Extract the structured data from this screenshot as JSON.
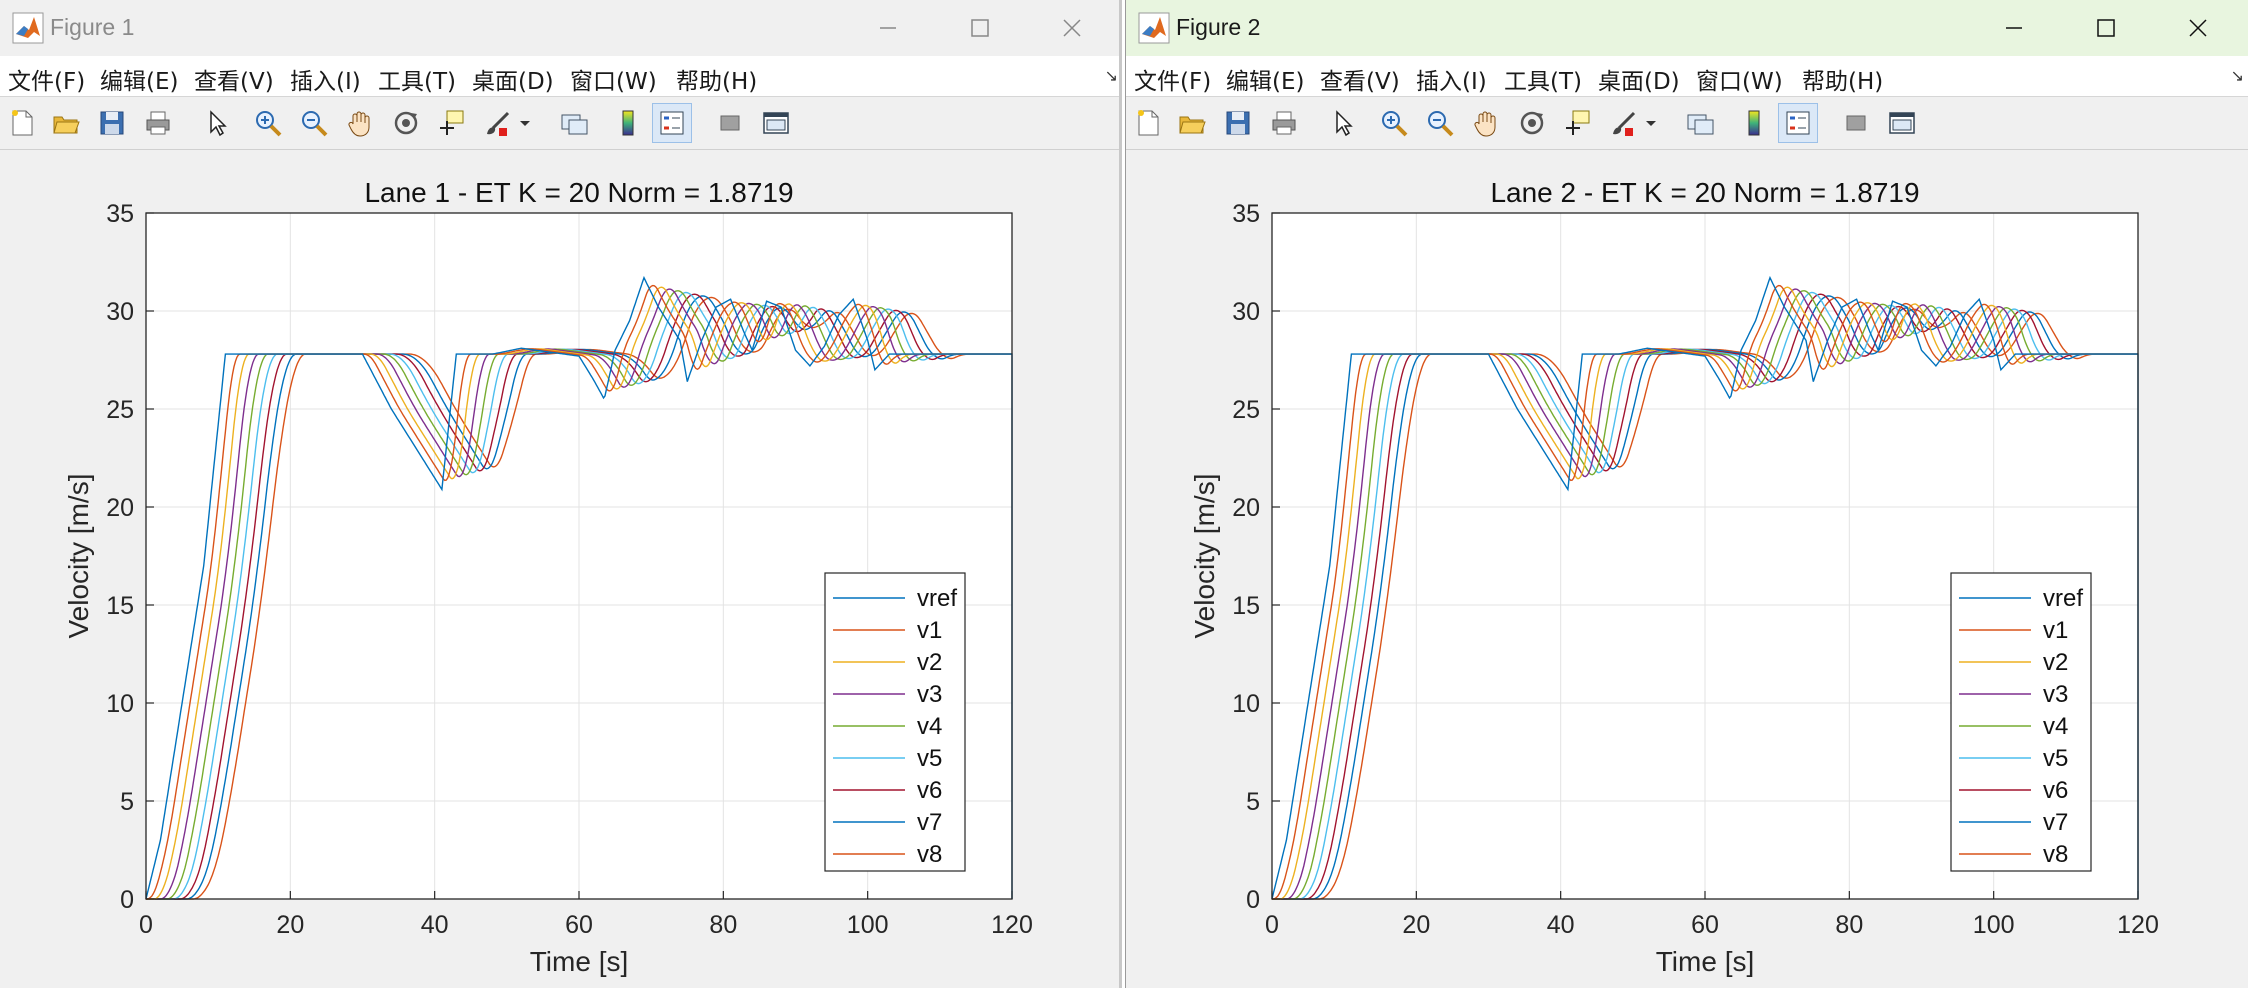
{
  "menu": [
    "文件(F)",
    "编辑(E)",
    "查看(V)",
    "插入(I)",
    "工具(T)",
    "桌面(D)",
    "窗口(W)",
    "帮助(H)"
  ],
  "toolbar_icons": [
    "new-figure-icon",
    "open-file-icon",
    "save-icon",
    "print-icon",
    "pointer-icon",
    "zoom-in-icon",
    "zoom-out-icon",
    "pan-hand-icon",
    "rotate-3d-icon",
    "data-cursor-icon",
    "brush-icon",
    "brush-dropdown-icon",
    "link-plot-icon",
    "colorbar-icon",
    "legend-icon",
    "hide-plot-tools-icon",
    "show-plot-tools-icon"
  ],
  "colors": {
    "series": [
      "#0072BD",
      "#D95319",
      "#EDB120",
      "#7E2F8E",
      "#77AC30",
      "#4DBEEE",
      "#A2142F",
      "#0072BD",
      "#D95319"
    ],
    "titlebar_active": "#e8f5df",
    "window_bg": "#f0f0f0"
  },
  "windows": [
    {
      "title": "Figure 1",
      "chart_data": {
        "type": "line",
        "title": "Lane 1 - ET K = 20 Norm = 1.8719",
        "xlabel": "Time [s]",
        "ylabel": "Velocity [m/s]",
        "xlim": [
          0,
          120
        ],
        "ylim": [
          0,
          35
        ],
        "xticks": [
          "0",
          "20",
          "40",
          "60",
          "80",
          "100",
          "120"
        ],
        "yticks": [
          "0",
          "5",
          "10",
          "15",
          "20",
          "25",
          "30",
          "35"
        ],
        "grid": true,
        "legend_position": "lower-right",
        "legend": [
          "vref",
          "v1",
          "v2",
          "v3",
          "v4",
          "v5",
          "v6",
          "v7",
          "v8"
        ],
        "series_lag_s": 1.1,
        "vref": [
          [
            0,
            0
          ],
          [
            2,
            3
          ],
          [
            5,
            10
          ],
          [
            8,
            17
          ],
          [
            11,
            27.8
          ],
          [
            30,
            27.8
          ],
          [
            34,
            25
          ],
          [
            41,
            20.9
          ],
          [
            43,
            27.8
          ],
          [
            48,
            27.8
          ],
          [
            52,
            28.1
          ],
          [
            56,
            27.9
          ],
          [
            60,
            27.7
          ],
          [
            62,
            26.5
          ],
          [
            63.5,
            25.5
          ],
          [
            65,
            28
          ],
          [
            67,
            29.5
          ],
          [
            69,
            31.7
          ],
          [
            71,
            30.2
          ],
          [
            74,
            28.5
          ],
          [
            75,
            26.4
          ],
          [
            77,
            28.5
          ],
          [
            79,
            30.2
          ],
          [
            81,
            30.6
          ],
          [
            83,
            28.8
          ],
          [
            84,
            28
          ],
          [
            86,
            30.5
          ],
          [
            88,
            30.2
          ],
          [
            90,
            28
          ],
          [
            92,
            27.2
          ],
          [
            94,
            28.2
          ],
          [
            96,
            29.8
          ],
          [
            98,
            30.6
          ],
          [
            100,
            28.5
          ],
          [
            101,
            27
          ],
          [
            103,
            27.8
          ],
          [
            105,
            27.8
          ],
          [
            120,
            27.8
          ]
        ]
      }
    },
    {
      "title": "Figure 2",
      "chart_data": {
        "type": "line",
        "title": "Lane 2 - ET K = 20 Norm = 1.8719",
        "xlabel": "Time [s]",
        "ylabel": "Velocity [m/s]",
        "xlim": [
          0,
          120
        ],
        "ylim": [
          0,
          35
        ],
        "xticks": [
          "0",
          "20",
          "40",
          "60",
          "80",
          "100",
          "120"
        ],
        "yticks": [
          "0",
          "5",
          "10",
          "15",
          "20",
          "25",
          "30",
          "35"
        ],
        "grid": true,
        "legend_position": "lower-right",
        "legend": [
          "vref",
          "v1",
          "v2",
          "v3",
          "v4",
          "v5",
          "v6",
          "v7",
          "v8"
        ],
        "series_lag_s": 1.1,
        "vref": [
          [
            0,
            0
          ],
          [
            2,
            3
          ],
          [
            5,
            10
          ],
          [
            8,
            17
          ],
          [
            11,
            27.8
          ],
          [
            30,
            27.8
          ],
          [
            34,
            25
          ],
          [
            41,
            20.9
          ],
          [
            43,
            27.8
          ],
          [
            48,
            27.8
          ],
          [
            52,
            28.1
          ],
          [
            56,
            27.9
          ],
          [
            60,
            27.7
          ],
          [
            62,
            26.5
          ],
          [
            63.5,
            25.5
          ],
          [
            65,
            28
          ],
          [
            67,
            29.5
          ],
          [
            69,
            31.7
          ],
          [
            71,
            30.2
          ],
          [
            74,
            28.5
          ],
          [
            75,
            26.4
          ],
          [
            77,
            28.5
          ],
          [
            79,
            30.2
          ],
          [
            81,
            30.6
          ],
          [
            83,
            28.8
          ],
          [
            84,
            28
          ],
          [
            86,
            30.5
          ],
          [
            88,
            30.2
          ],
          [
            90,
            28
          ],
          [
            92,
            27.2
          ],
          [
            94,
            28.2
          ],
          [
            96,
            29.8
          ],
          [
            98,
            30.6
          ],
          [
            100,
            28.5
          ],
          [
            101,
            27
          ],
          [
            103,
            27.8
          ],
          [
            105,
            27.8
          ],
          [
            120,
            27.8
          ]
        ]
      }
    }
  ]
}
